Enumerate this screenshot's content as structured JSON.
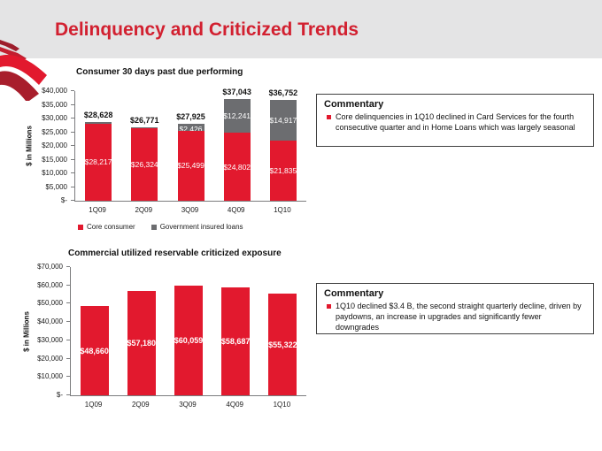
{
  "slide": {
    "title": "Delinquency and Criticized Trends",
    "colors": {
      "accent_red": "#e2192e",
      "title_red": "#d22030",
      "series_gray": "#6c6d70",
      "header_bg": "#e4e4e5"
    }
  },
  "chart_data": [
    {
      "type": "bar",
      "stacked": true,
      "title": "Consumer 30 days past due performing",
      "ylabel": "$ in Millions",
      "categories": [
        "1Q09",
        "2Q09",
        "3Q09",
        "4Q09",
        "1Q10"
      ],
      "series": [
        {
          "name": "Core consumer",
          "color": "#e2192e",
          "values": [
            28217,
            26324,
            25499,
            24802,
            21835
          ]
        },
        {
          "name": "Government insured loans",
          "color": "#6c6d70",
          "values": [
            411,
            447,
            2426,
            12241,
            14917
          ]
        }
      ],
      "totals": [
        28628,
        26771,
        27925,
        37043,
        36752
      ],
      "ylim": [
        0,
        40000
      ],
      "ytick_step": 5000,
      "grid": false,
      "legend_position": "bottom"
    },
    {
      "type": "bar",
      "stacked": false,
      "title": "Commercial utilized reservable criticized exposure",
      "ylabel": "$ in Millions",
      "categories": [
        "1Q09",
        "2Q09",
        "3Q09",
        "4Q09",
        "1Q10"
      ],
      "series": [
        {
          "color": "#e2192e",
          "values": [
            48660,
            57180,
            60059,
            58687,
            55322
          ]
        }
      ],
      "ylim": [
        0,
        70000
      ],
      "ytick_step": 10000,
      "grid": false,
      "legend_position": "none"
    }
  ],
  "commentary_top": {
    "heading": "Commentary",
    "bullets": [
      "Core delinquencies in 1Q10 declined in Card Services for the fourth consecutive quarter and in Home Loans which was largely seasonal"
    ]
  },
  "commentary_bottom": {
    "heading": "Commentary",
    "bullets": [
      "1Q10 declined $3.4 B, the second straight quarterly decline,  driven by paydowns, an increase in upgrades and significantly fewer downgrades"
    ]
  }
}
